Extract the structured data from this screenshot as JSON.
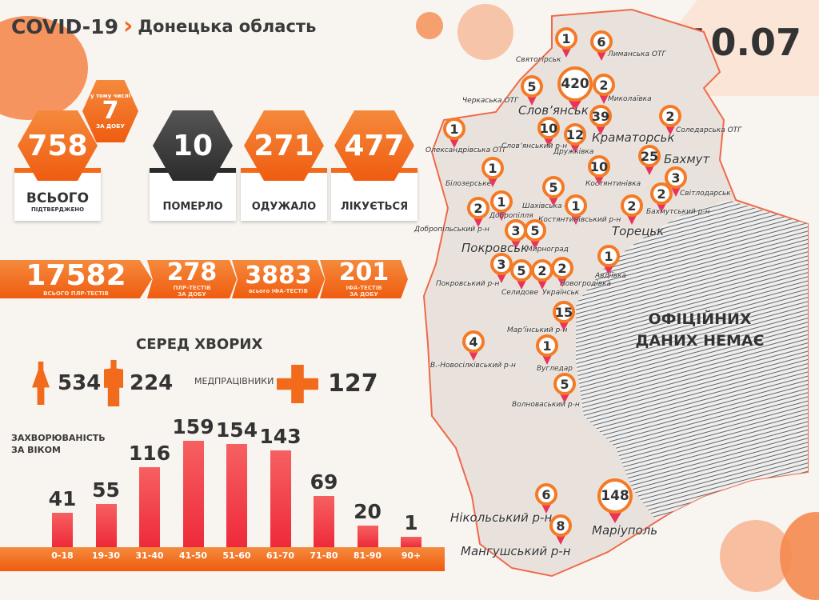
{
  "header": {
    "covid": "COVID-19",
    "region": "Донецька область",
    "date": "10.07"
  },
  "colors": {
    "accent": "#f26a1b",
    "dark": "#2b2b2b",
    "bar": "#ee2a3a",
    "pin": "#e8345a"
  },
  "summary": {
    "confirmed": {
      "value": "758",
      "label": "ВСЬОГО",
      "sublabel": "ПІДТВЕРДЖЕНО"
    },
    "daily": {
      "prefix": "у тому числі",
      "value": "7",
      "suffix": "ЗА ДОБУ"
    },
    "died": {
      "value": "10",
      "label": "ПОМЕРЛО"
    },
    "recovered": {
      "value": "271",
      "label": "ОДУЖАЛО"
    },
    "treated": {
      "value": "477",
      "label": "ЛІКУЄТЬСЯ"
    }
  },
  "tests": [
    {
      "value": "17582",
      "label": "ВСЬОГО ПЛР-ТЕСТІВ"
    },
    {
      "value": "278",
      "label": "ПЛР-ТЕСТІВ ЗА ДОБУ"
    },
    {
      "value": "3883",
      "label": "всього ІФА-ТЕСТІВ"
    },
    {
      "value": "201",
      "label": "ІФА-ТЕСТІВ ЗА ДОБУ"
    }
  ],
  "patients": {
    "title": "СЕРЕД ХВОРИХ",
    "women": "534",
    "men": "224",
    "medics_label": "МЕДПРАЦІВНИКИ",
    "medics": "127"
  },
  "chart_data": {
    "type": "bar",
    "title": "ЗАХВОРЮВАНІСТЬ ЗА ВІКОМ",
    "categories": [
      "0-18",
      "19-30",
      "31-40",
      "41-50",
      "51-60",
      "61-70",
      "71-80",
      "81-90",
      "90+"
    ],
    "values": [
      41,
      55,
      116,
      159,
      154,
      143,
      69,
      20,
      1
    ]
  },
  "map": {
    "no_data": "ОФІЦІЙНИХ ДАНИХ НЕМАЄ",
    "pins": [
      {
        "value": "1",
        "label": "Святогірськ"
      },
      {
        "value": "6",
        "label": "Лиманська ОТГ"
      },
      {
        "value": "5",
        "label": "Черкаська ОТГ"
      },
      {
        "value": "420",
        "label": "Слов’янськ"
      },
      {
        "value": "2",
        "label": "Миколаївка"
      },
      {
        "value": "39",
        "label": "Краматорськ"
      },
      {
        "value": "2",
        "label": "Соледарська ОТГ"
      },
      {
        "value": "1",
        "label": "Олександрівська ОТГ"
      },
      {
        "value": "10",
        "label": "Слов’янський р-н"
      },
      {
        "value": "12",
        "label": "Дружківка"
      },
      {
        "value": "25",
        "label": "Бахмут"
      },
      {
        "value": "10",
        "label": "Костянтинівка"
      },
      {
        "value": "1",
        "label": "Білозерське"
      },
      {
        "value": "3",
        "label": "Світлодарськ"
      },
      {
        "value": "5",
        "label": "Шахівська ОТГ"
      },
      {
        "value": "2",
        "label": "Бахмутський р-н"
      },
      {
        "value": "1",
        "label": "Добропілля"
      },
      {
        "value": "2",
        "label": "Добропільський р-н"
      },
      {
        "value": "1",
        "label": "Костянтинівський р-н"
      },
      {
        "value": "2",
        "label": "Торецьк"
      },
      {
        "value": "3",
        "label": "Покровськ"
      },
      {
        "value": "5",
        "label": "Мирноград"
      },
      {
        "value": "1",
        "label": "Авдіївка"
      },
      {
        "value": "3",
        "label": "Покровський р-н"
      },
      {
        "value": "5",
        "label": "Селидове"
      },
      {
        "value": "2",
        "label": "Українськ"
      },
      {
        "value": "2",
        "label": "Новогродівка"
      },
      {
        "value": "15",
        "label": "Мар’їнський р-н"
      },
      {
        "value": "4",
        "label": "В.-Новосілківський р-н"
      },
      {
        "value": "1",
        "label": "Вугледар"
      },
      {
        "value": "5",
        "label": "Волноваський р-н"
      },
      {
        "value": "6",
        "label": "Нікольський р-н"
      },
      {
        "value": "148",
        "label": "Маріуполь"
      },
      {
        "value": "8",
        "label": "Мангушський р-н"
      }
    ]
  }
}
